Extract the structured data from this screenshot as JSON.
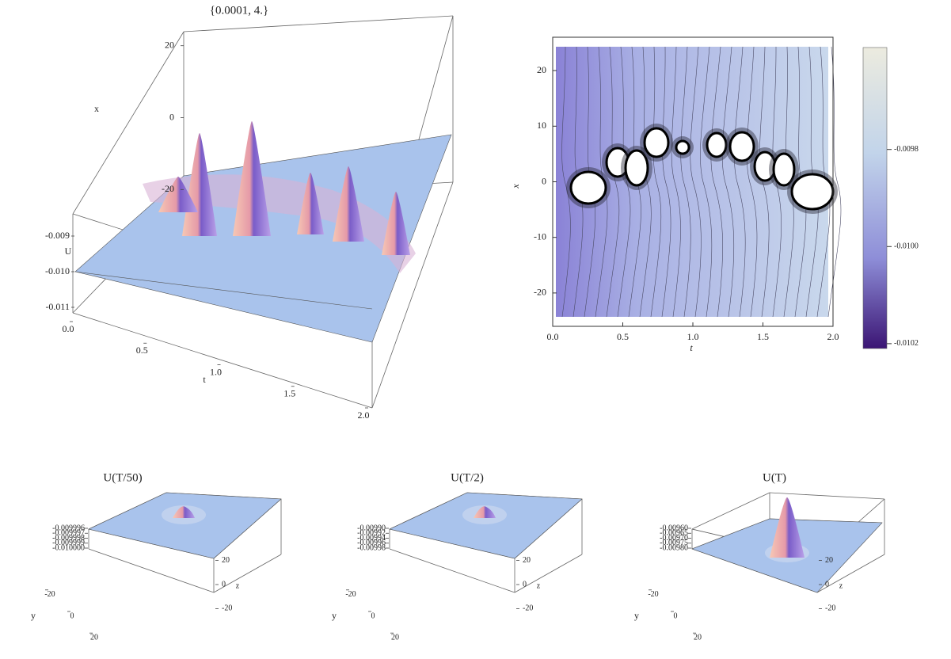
{
  "chart_data": [
    {
      "type": "surface3d",
      "title": "{0.0001, 4.}",
      "xlabel": "t",
      "ylabel": "x",
      "zlabel": "U",
      "xlim": [
        0,
        2
      ],
      "xticks": [
        {
          "value": 0,
          "label": "0.0"
        },
        0.5,
        {
          "value": 1,
          "label": "1.0"
        },
        1.5,
        {
          "value": 2,
          "label": "2.0"
        }
      ],
      "ylim": [
        -25,
        25
      ],
      "yticks": [
        -20,
        0,
        20
      ],
      "zlim": [
        -0.011,
        -0.009
      ],
      "zticks": [
        -0.011,
        {
          "value": -0.01,
          "label": "-0.010"
        },
        -0.009
      ]
    },
    {
      "type": "contour",
      "xlabel": "t",
      "ylabel": "x",
      "xlim": [
        0,
        2
      ],
      "xticks": [
        {
          "value": 0,
          "label": "0.0"
        },
        0.5,
        {
          "value": 1,
          "label": "1.0"
        },
        1.5,
        {
          "value": 2,
          "label": "2.0"
        }
      ],
      "ylim": [
        -26,
        26
      ],
      "yticks": [
        -20,
        -10,
        0,
        10,
        20
      ],
      "clim": [
        -0.01021,
        -0.00959
      ],
      "cticks": [
        -0.0098,
        {
          "value": -0.01,
          "label": "-0.0100"
        },
        -0.0102
      ]
    },
    {
      "type": "surface3d",
      "title": "U(T/50)",
      "xlabel": "y",
      "ylabel": "z",
      "xlim": [
        -25,
        25
      ],
      "xticks": [
        -20,
        0,
        20
      ],
      "ylim": [
        -25,
        25
      ],
      "yticks": [
        -20,
        0,
        20
      ],
      "zlim": [
        -0.01,
        -0.009996
      ],
      "zticks": [
        -0.009996,
        -0.009997,
        -0.009998,
        -0.009999,
        {
          "value": -0.01,
          "label": "-0.010000"
        }
      ]
    },
    {
      "type": "surface3d",
      "title": "U(T/2)",
      "xlabel": "y",
      "ylabel": "z",
      "xlim": [
        -25,
        25
      ],
      "xticks": [
        -20,
        0,
        20
      ],
      "ylim": [
        -25,
        25
      ],
      "yticks": [
        -20,
        0,
        20
      ],
      "zlim": [
        -0.00998,
        -0.0099
      ],
      "zticks": [
        {
          "value": -0.0099,
          "label": "-0.00990"
        },
        -0.00992,
        -0.00994,
        -0.00996,
        -0.00998
      ]
    },
    {
      "type": "surface3d",
      "title": "U(T)",
      "xlabel": "y",
      "ylabel": "z",
      "xlim": [
        -25,
        25
      ],
      "xticks": [
        -20,
        0,
        20
      ],
      "ylim": [
        -25,
        25
      ],
      "yticks": [
        -20,
        0,
        20
      ],
      "zlim": [
        -0.0098,
        -0.0096
      ],
      "zticks": [
        {
          "value": -0.0096,
          "label": "-0.00960"
        },
        -0.00965,
        {
          "value": -0.0097,
          "label": "-0.00970"
        },
        -0.00975,
        {
          "value": -0.0098,
          "label": "-0.00980"
        }
      ]
    }
  ]
}
